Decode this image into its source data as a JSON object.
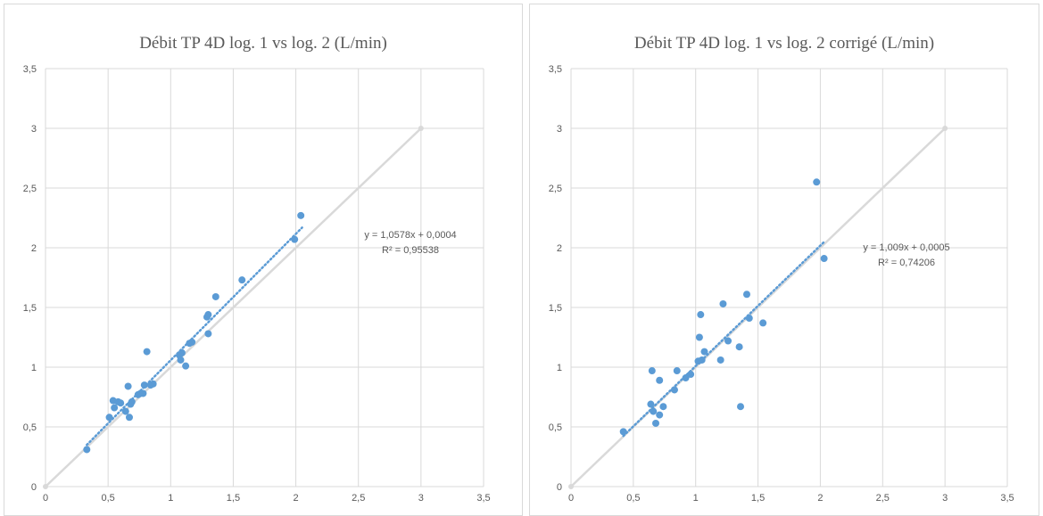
{
  "chart_data": [
    {
      "type": "scatter",
      "title": "Débit TP 4D log. 1 vs log. 2 (L/min)",
      "xlim": [
        0,
        3.5
      ],
      "ylim": [
        0,
        3.5
      ],
      "x_ticks": [
        "0",
        "0,5",
        "1",
        "1,5",
        "2",
        "2,5",
        "3",
        "3,5"
      ],
      "y_ticks": [
        "0",
        "0,5",
        "1",
        "1,5",
        "2",
        "2,5",
        "3",
        "3,5"
      ],
      "grid": true,
      "identity_line": {
        "x": [
          0,
          3
        ],
        "y": [
          0,
          3
        ],
        "color": "#d9d9d9"
      },
      "points_color": "#5b9bd5",
      "trendline": {
        "x": [
          0.33,
          2.05
        ],
        "slope": 1.0578,
        "intercept": 0.0004,
        "color": "#5b9bd5"
      },
      "equation": "y = 1,0578x + 0,0004",
      "r2": "R² = 0,95538",
      "points": [
        {
          "x": 0.33,
          "y": 0.31
        },
        {
          "x": 0.51,
          "y": 0.58
        },
        {
          "x": 0.54,
          "y": 0.72
        },
        {
          "x": 0.55,
          "y": 0.66
        },
        {
          "x": 0.58,
          "y": 0.71
        },
        {
          "x": 0.6,
          "y": 0.7
        },
        {
          "x": 0.64,
          "y": 0.63
        },
        {
          "x": 0.66,
          "y": 0.84
        },
        {
          "x": 0.67,
          "y": 0.58
        },
        {
          "x": 0.68,
          "y": 0.69
        },
        {
          "x": 0.69,
          "y": 0.71
        },
        {
          "x": 0.74,
          "y": 0.77
        },
        {
          "x": 0.76,
          "y": 0.78
        },
        {
          "x": 0.78,
          "y": 0.78
        },
        {
          "x": 0.79,
          "y": 0.85
        },
        {
          "x": 0.81,
          "y": 1.13
        },
        {
          "x": 0.84,
          "y": 0.85
        },
        {
          "x": 0.86,
          "y": 0.86
        },
        {
          "x": 1.07,
          "y": 1.1
        },
        {
          "x": 1.08,
          "y": 1.06
        },
        {
          "x": 1.09,
          "y": 1.12
        },
        {
          "x": 1.12,
          "y": 1.01
        },
        {
          "x": 1.15,
          "y": 1.2
        },
        {
          "x": 1.17,
          "y": 1.21
        },
        {
          "x": 1.29,
          "y": 1.42
        },
        {
          "x": 1.3,
          "y": 1.44
        },
        {
          "x": 1.3,
          "y": 1.28
        },
        {
          "x": 1.36,
          "y": 1.59
        },
        {
          "x": 1.57,
          "y": 1.73
        },
        {
          "x": 1.99,
          "y": 2.07
        },
        {
          "x": 2.04,
          "y": 2.27
        }
      ]
    },
    {
      "type": "scatter",
      "title": "Débit TP 4D log. 1 vs log. 2 corrigé (L/min)",
      "xlim": [
        0,
        3.5
      ],
      "ylim": [
        0,
        3.5
      ],
      "x_ticks": [
        "0",
        "0,5",
        "1",
        "1,5",
        "2",
        "2,5",
        "3",
        "3,5"
      ],
      "y_ticks": [
        "0",
        "0,5",
        "1",
        "1,5",
        "2",
        "2,5",
        "3",
        "3,5"
      ],
      "grid": true,
      "identity_line": {
        "x": [
          0,
          3
        ],
        "y": [
          0,
          3
        ],
        "color": "#d9d9d9"
      },
      "points_color": "#5b9bd5",
      "trendline": {
        "x": [
          0.42,
          2.03
        ],
        "slope": 1.009,
        "intercept": 0.0005,
        "color": "#5b9bd5"
      },
      "equation": "y = 1,009x + 0,0005",
      "r2": "R² = 0,74206",
      "points": [
        {
          "x": 0.42,
          "y": 0.46
        },
        {
          "x": 0.64,
          "y": 0.69
        },
        {
          "x": 0.65,
          "y": 0.97
        },
        {
          "x": 0.66,
          "y": 0.63
        },
        {
          "x": 0.68,
          "y": 0.53
        },
        {
          "x": 0.71,
          "y": 0.89
        },
        {
          "x": 0.71,
          "y": 0.6
        },
        {
          "x": 0.74,
          "y": 0.67
        },
        {
          "x": 0.83,
          "y": 0.81
        },
        {
          "x": 0.85,
          "y": 0.97
        },
        {
          "x": 0.92,
          "y": 0.91
        },
        {
          "x": 0.96,
          "y": 0.94
        },
        {
          "x": 1.02,
          "y": 1.05
        },
        {
          "x": 1.03,
          "y": 1.25
        },
        {
          "x": 1.04,
          "y": 1.44
        },
        {
          "x": 1.05,
          "y": 1.06
        },
        {
          "x": 1.07,
          "y": 1.13
        },
        {
          "x": 1.2,
          "y": 1.06
        },
        {
          "x": 1.22,
          "y": 1.53
        },
        {
          "x": 1.26,
          "y": 1.22
        },
        {
          "x": 1.35,
          "y": 1.17
        },
        {
          "x": 1.36,
          "y": 0.67
        },
        {
          "x": 1.41,
          "y": 1.61
        },
        {
          "x": 1.43,
          "y": 1.41
        },
        {
          "x": 1.54,
          "y": 1.37
        },
        {
          "x": 1.97,
          "y": 2.55
        },
        {
          "x": 2.03,
          "y": 1.91
        }
      ]
    }
  ]
}
